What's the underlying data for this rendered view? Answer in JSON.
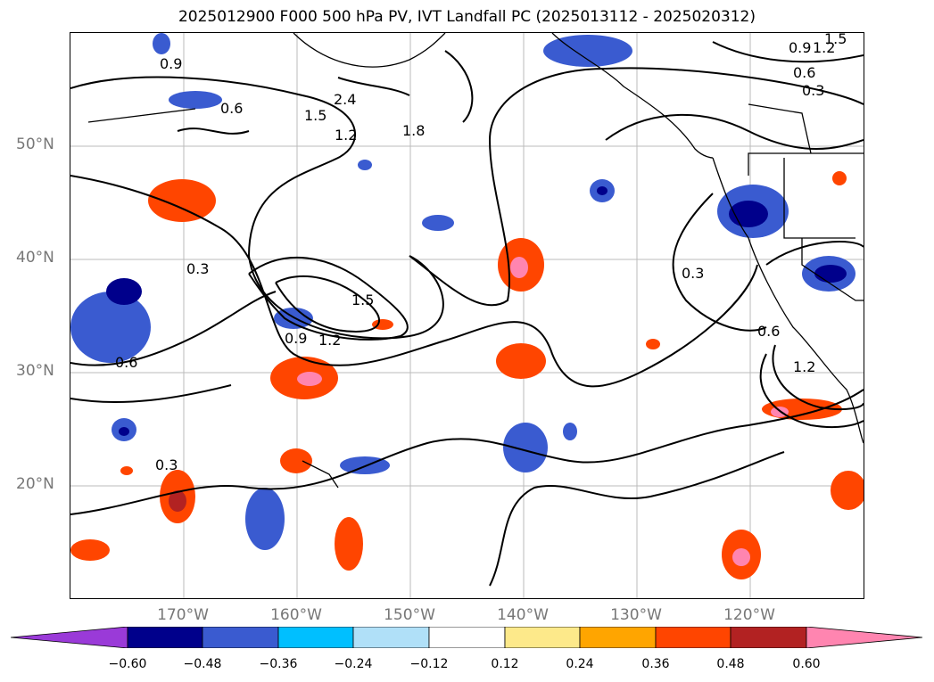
{
  "title": "2025012900 F000 500 hPa PV, IVT Landfall PC (2025013112 - 2025020312)",
  "lat_labels": [
    "50°N",
    "40°N",
    "30°N",
    "20°N"
  ],
  "lon_labels": [
    "170°W",
    "160°W",
    "150°W",
    "140°W",
    "130°W",
    "120°W"
  ],
  "contour_labels": [
    "0.9",
    "0.6",
    "1.5",
    "1.2",
    "1.8",
    "2.4",
    "0.3",
    "1.5",
    "1.2",
    "0.9",
    "0.6",
    "0.3",
    "0.3",
    "1.2",
    "0.9",
    "0.6",
    "0.3",
    "1.5",
    "0.6",
    "1.2"
  ],
  "colorbar": {
    "ticks": [
      "−0.60",
      "−0.48",
      "−0.36",
      "−0.24",
      "−0.12",
      "0.12",
      "0.24",
      "0.36",
      "0.48",
      "0.60"
    ],
    "colors": [
      "#9a3ad8",
      "#00008b",
      "#3a5bd0",
      "#00bfff",
      "#b0e0f8",
      "#ffffff",
      "#fde98a",
      "#ffa500",
      "#ff4500",
      "#b22222",
      "#ff85b0"
    ]
  },
  "shading_colors": {
    "neg_dark": "#00008b",
    "neg_mid": "#3a5bd0",
    "neg_light": "#00bfff",
    "neg_pale": "#b0e0f8",
    "pos_pale": "#fde98a",
    "pos_mid": "#ffa500",
    "pos_strong": "#ff4500",
    "pos_dark": "#b22222",
    "pos_max": "#ff85b0"
  }
}
